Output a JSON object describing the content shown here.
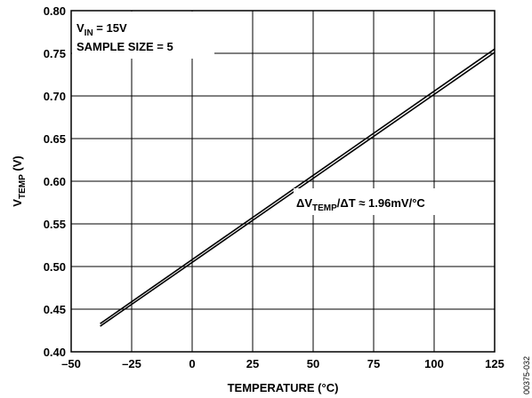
{
  "chart_data": {
    "type": "line",
    "xlabel": "TEMPERATURE (°C)",
    "ylabel_main": "V",
    "ylabel_sub": "TEMP",
    "ylabel_unit": " (V)",
    "xlim": [
      -50,
      125
    ],
    "ylim": [
      0.4,
      0.8
    ],
    "grid": true,
    "x_ticks": [
      -50,
      -25,
      0,
      25,
      50,
      75,
      100,
      125
    ],
    "x_tick_labels": [
      "–50",
      "–25",
      "0",
      "25",
      "50",
      "75",
      "100",
      "125"
    ],
    "y_ticks": [
      0.4,
      0.45,
      0.5,
      0.55,
      0.6,
      0.65,
      0.7,
      0.75,
      0.8
    ],
    "y_tick_labels": [
      "0.40",
      "0.45",
      "0.50",
      "0.55",
      "0.60",
      "0.65",
      "0.70",
      "0.75",
      "0.80"
    ],
    "series": [
      {
        "x": [
          -38,
          125
        ],
        "y": [
          0.43,
          0.751
        ]
      },
      {
        "x": [
          -38,
          125
        ],
        "y": [
          0.433,
          0.755
        ]
      }
    ],
    "annotations": {
      "vin": {
        "main": "V",
        "sub": "IN",
        "rest": " = 15V"
      },
      "sample_size": "SAMPLE SIZE = 5",
      "slope": {
        "pre": "ΔV",
        "sub": "TEMP",
        "post": "/ΔT ≈ 1.96mV/°C"
      }
    },
    "figure_id": "00375-032",
    "colors": {
      "line": "#000000",
      "grid": "#000000",
      "background": "#ffffff"
    }
  }
}
